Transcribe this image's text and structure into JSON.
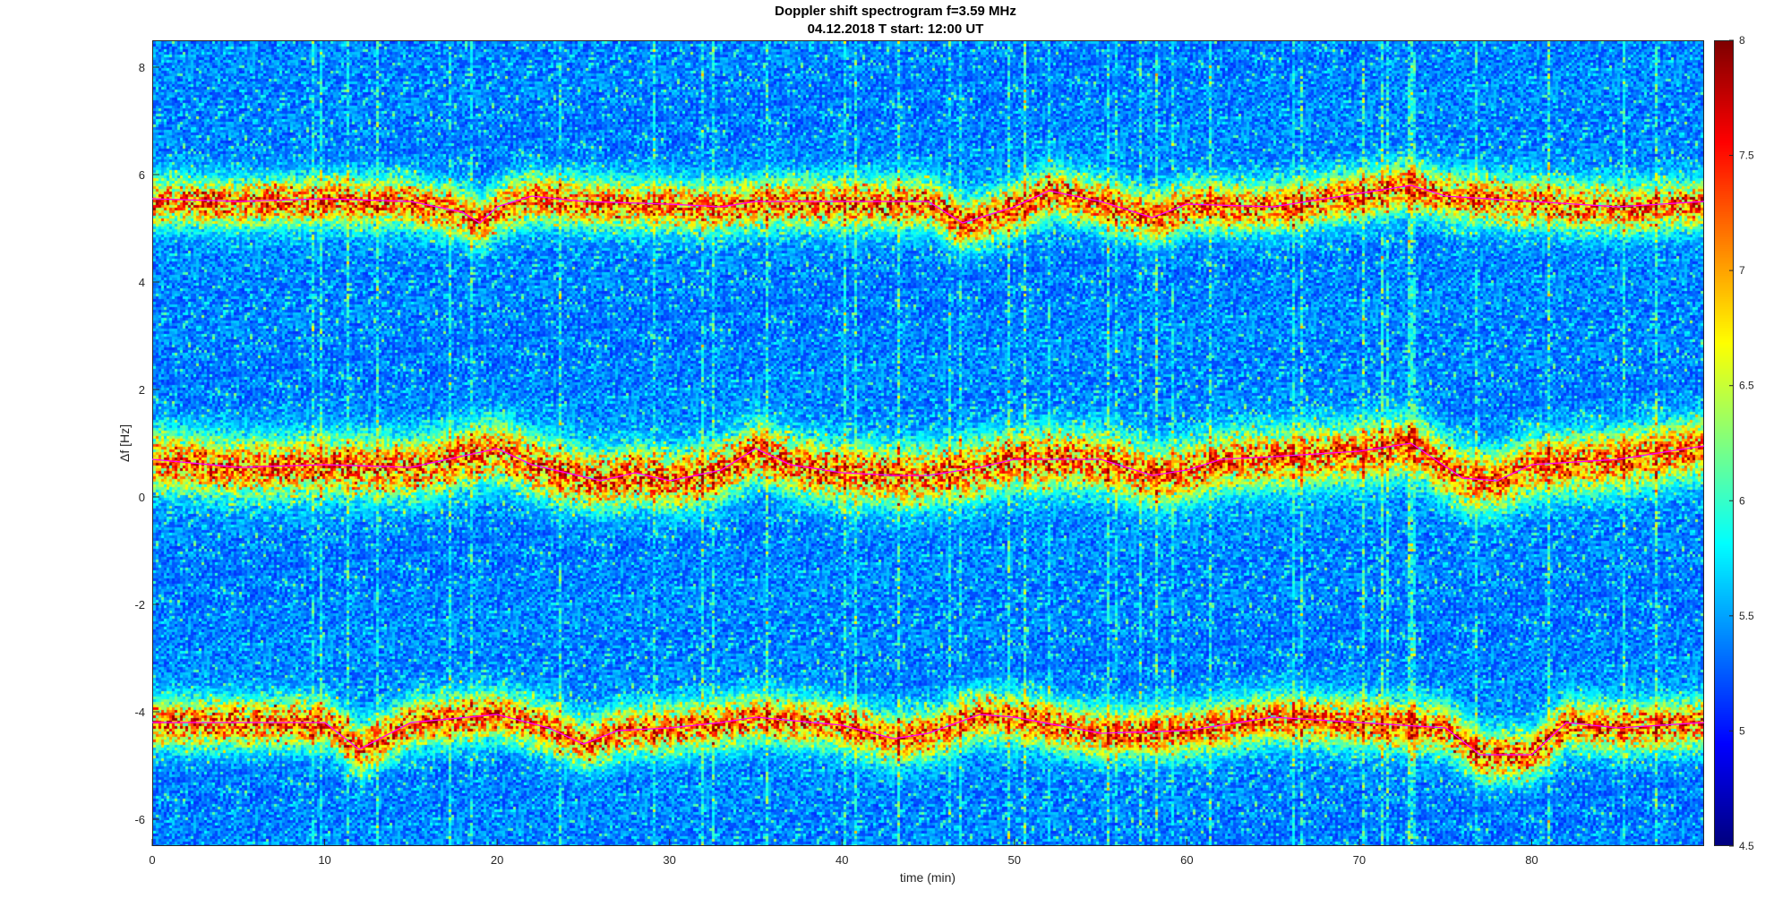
{
  "chart_data": {
    "type": "heatmap",
    "title": "Doppler shift spectrogram f=3.59 MHz",
    "subtitle": "04.12.2018   T start: 12:00 UT",
    "xlabel": "time (min)",
    "ylabel": "Δf [Hz]",
    "xlim": [
      0,
      90
    ],
    "ylim": [
      -6.5,
      8.5
    ],
    "xticks": [
      "0",
      "10",
      "20",
      "30",
      "40",
      "50",
      "60",
      "70",
      "80"
    ],
    "yticks": [
      "8",
      "6",
      "4",
      "2",
      "0",
      "-2",
      "-4",
      "-6"
    ],
    "colorbar": {
      "colormap": "jet",
      "clim": [
        4.5,
        8
      ],
      "ticks": [
        "8",
        "7.5",
        "7",
        "6.5",
        "6",
        "5.5",
        "5",
        "4.5"
      ]
    },
    "traces": [
      {
        "x": [
          0,
          5,
          10,
          15,
          18,
          19,
          20,
          22,
          25,
          30,
          33,
          35,
          40,
          45,
          47,
          48,
          50,
          52,
          55,
          58,
          60,
          65,
          70,
          73,
          75,
          80,
          85,
          90
        ],
        "y": [
          5.55,
          5.5,
          5.55,
          5.5,
          5.3,
          5.1,
          5.4,
          5.6,
          5.5,
          5.45,
          5.4,
          5.5,
          5.5,
          5.5,
          5.1,
          5.2,
          5.4,
          5.7,
          5.5,
          5.2,
          5.45,
          5.4,
          5.65,
          5.8,
          5.6,
          5.5,
          5.4,
          5.5
        ]
      },
      {
        "x": [
          0,
          5,
          10,
          15,
          20,
          22,
          26,
          28,
          30,
          33,
          35,
          37,
          40,
          43,
          45,
          48,
          50,
          55,
          58,
          60,
          62,
          65,
          70,
          73,
          76,
          78,
          80,
          85,
          90
        ],
        "y": [
          0.7,
          0.55,
          0.6,
          0.55,
          0.9,
          0.6,
          0.3,
          0.45,
          0.3,
          0.5,
          0.9,
          0.6,
          0.45,
          0.4,
          0.4,
          0.55,
          0.7,
          0.7,
          0.4,
          0.5,
          0.7,
          0.75,
          0.85,
          1.0,
          0.35,
          0.3,
          0.6,
          0.7,
          0.95
        ]
      },
      {
        "x": [
          0,
          5,
          10,
          12,
          15,
          20,
          23,
          25,
          27,
          30,
          33,
          35,
          40,
          43,
          45,
          48,
          50,
          55,
          60,
          65,
          70,
          75,
          77,
          80,
          82,
          85,
          90
        ],
        "y": [
          -4.2,
          -4.2,
          -4.2,
          -4.7,
          -4.2,
          -4.05,
          -4.3,
          -4.6,
          -4.35,
          -4.3,
          -4.2,
          -4.1,
          -4.25,
          -4.5,
          -4.4,
          -4.05,
          -4.1,
          -4.4,
          -4.35,
          -4.1,
          -4.2,
          -4.3,
          -4.8,
          -4.8,
          -4.2,
          -4.3,
          -4.2
        ]
      }
    ]
  }
}
